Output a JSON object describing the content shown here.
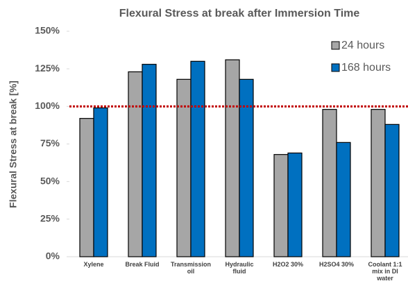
{
  "chart_data": {
    "type": "bar",
    "title": "Flexural Stress at break after Immersion Time",
    "y_label": "Flexural Stress at break [%]",
    "categories": [
      "Xylene",
      "Break Fluid",
      "Transmission oil",
      "Hydraulic fluid",
      "H2O2 30%",
      "H2SO4 30%",
      "Coolant 1:1 mix in DI water"
    ],
    "series": [
      {
        "name": "24 hours",
        "color": "#a6a6a6",
        "values": [
          92,
          123,
          118,
          131,
          68,
          98,
          98
        ]
      },
      {
        "name": "168 hours",
        "color": "#0070c0",
        "values": [
          99,
          128,
          130,
          118,
          69,
          76,
          88
        ]
      }
    ],
    "ylim": [
      0,
      150
    ],
    "yticks": [
      {
        "value": 0,
        "label": "0%"
      },
      {
        "value": 25,
        "label": "25%"
      },
      {
        "value": 50,
        "label": "50%"
      },
      {
        "value": 75,
        "label": "75%"
      },
      {
        "value": 100,
        "label": "100%"
      },
      {
        "value": 125,
        "label": "125%"
      },
      {
        "value": 150,
        "label": "150%"
      }
    ],
    "reference_line": {
      "value": 100,
      "color": "#c00000"
    },
    "legend": "top-right"
  }
}
